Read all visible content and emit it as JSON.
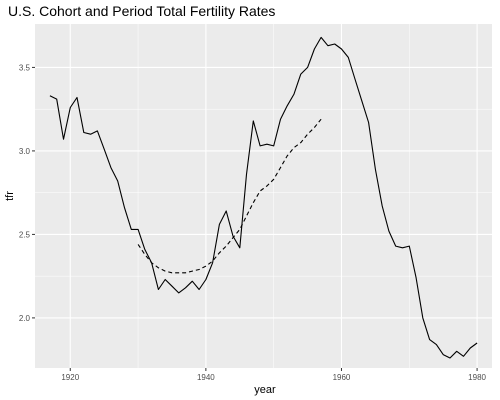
{
  "chart_data": {
    "type": "line",
    "title": "U.S. Cohort and Period Total Fertility Rates",
    "xlabel": "year",
    "ylabel": "tfr",
    "xlim": [
      1914.8,
      1982.2
    ],
    "ylim": [
      1.7,
      3.76
    ],
    "x_ticks": [
      1920,
      1940,
      1960,
      1980
    ],
    "y_ticks": [
      2.0,
      2.5,
      3.0,
      3.5
    ],
    "x_tick_labels": [
      "1920",
      "1940",
      "1960",
      "1980"
    ],
    "y_tick_labels": [
      "2.0",
      "2.5",
      "3.0",
      "3.5"
    ],
    "grid": true,
    "background_color": "#ebebeb",
    "grid_color": "#ffffff",
    "series": [
      {
        "line_style": "solid",
        "color": "#000000",
        "x": [
          1917,
          1918,
          1919,
          1920,
          1921,
          1922,
          1923,
          1924,
          1925,
          1926,
          1927,
          1928,
          1929,
          1930,
          1931,
          1932,
          1933,
          1934,
          1935,
          1936,
          1937,
          1938,
          1939,
          1940,
          1941,
          1942,
          1943,
          1944,
          1945,
          1946,
          1947,
          1948,
          1949,
          1950,
          1951,
          1952,
          1953,
          1954,
          1955,
          1956,
          1957,
          1958,
          1959,
          1960,
          1961,
          1962,
          1963,
          1964,
          1965,
          1966,
          1967,
          1968,
          1969,
          1970,
          1971,
          1972,
          1973,
          1974,
          1975,
          1976,
          1977,
          1978,
          1979,
          1980
        ],
        "y": [
          3.33,
          3.31,
          3.07,
          3.26,
          3.32,
          3.11,
          3.1,
          3.12,
          3.01,
          2.9,
          2.82,
          2.66,
          2.53,
          2.53,
          2.41,
          2.33,
          2.17,
          2.23,
          2.19,
          2.15,
          2.18,
          2.22,
          2.17,
          2.23,
          2.33,
          2.56,
          2.64,
          2.49,
          2.42,
          2.86,
          3.18,
          3.03,
          3.04,
          3.03,
          3.19,
          3.27,
          3.34,
          3.46,
          3.5,
          3.61,
          3.68,
          3.63,
          3.64,
          3.61,
          3.56,
          3.43,
          3.3,
          3.17,
          2.89,
          2.67,
          2.52,
          2.43,
          2.42,
          2.43,
          2.24,
          2.0,
          1.87,
          1.84,
          1.78,
          1.76,
          1.8,
          1.77,
          1.82,
          1.85
        ]
      },
      {
        "line_style": "dashed",
        "color": "#000000",
        "x": [
          1930,
          1931,
          1932,
          1933,
          1934,
          1935,
          1936,
          1937,
          1938,
          1939,
          1940,
          1941,
          1942,
          1943,
          1944,
          1945,
          1946,
          1947,
          1948,
          1949,
          1950,
          1951,
          1952,
          1953,
          1954,
          1955,
          1956,
          1957
        ],
        "y": [
          2.44,
          2.38,
          2.33,
          2.3,
          2.28,
          2.27,
          2.27,
          2.27,
          2.28,
          2.29,
          2.31,
          2.34,
          2.39,
          2.43,
          2.48,
          2.53,
          2.61,
          2.69,
          2.76,
          2.79,
          2.83,
          2.9,
          2.97,
          3.02,
          3.05,
          3.1,
          3.14,
          3.19
        ]
      }
    ]
  }
}
